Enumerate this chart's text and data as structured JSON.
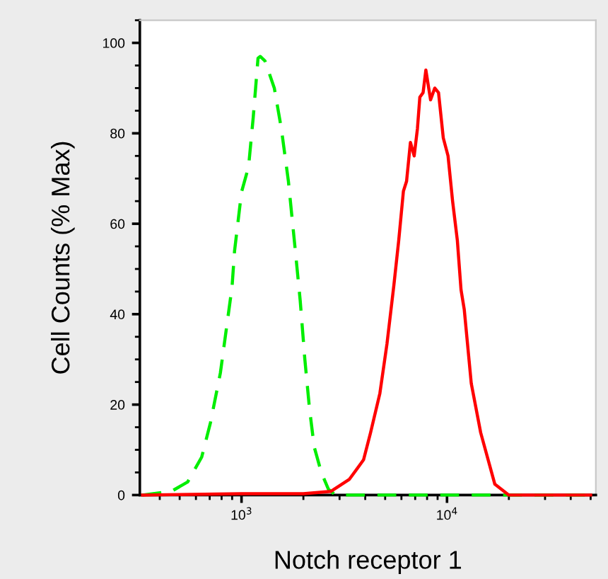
{
  "chart_data": {
    "type": "line",
    "xlabel": "Notch receptor 1",
    "ylabel": "Cell Counts (% Max)",
    "log": "x",
    "xlim": [
      320,
      53000
    ],
    "xticks": [
      {
        "value": 1000,
        "label": "10$^{3}$"
      },
      {
        "value": 10000,
        "label": "10$^{4}$"
      }
    ],
    "ylim": [
      0,
      105
    ],
    "yticks": [
      0,
      20,
      40,
      60,
      80,
      100
    ],
    "grid": false,
    "legend": false,
    "marker": "none",
    "series": [
      {
        "color": "#00ee00",
        "line_style": "dashed",
        "x": [
          330,
          455,
          547,
          640,
          706,
          789,
          899,
          925,
          1000,
          1082,
          1140,
          1203,
          1233,
          1301,
          1444,
          1563,
          1691,
          1828,
          1930,
          2033,
          2143,
          2259,
          2445,
          2647,
          2864,
          10000,
          50000
        ],
        "values": [
          0,
          0.8,
          2.9,
          8.4,
          16,
          27,
          46,
          54,
          67,
          72.6,
          83.5,
          96.6,
          97,
          96,
          90,
          81,
          69.4,
          54,
          43,
          30,
          19,
          10.6,
          5,
          1.3,
          0,
          0,
          0
        ]
      },
      {
        "color": "#ff0000",
        "line_style": "solid",
        "x": [
          330,
          1000,
          2000,
          2716,
          3350,
          3926,
          4246,
          4713,
          5102,
          5517,
          5821,
          6135,
          6357,
          6637,
          6922,
          7178,
          7375,
          7651,
          7889,
          8318,
          8716,
          9093,
          9589,
          10116,
          10646,
          11229,
          11701,
          12134,
          13122,
          14584,
          17090,
          20000,
          50000
        ],
        "values": [
          0,
          0.3,
          0.3,
          0.8,
          3.5,
          7.8,
          13.8,
          22.5,
          33.4,
          46.5,
          56.3,
          67.2,
          69.4,
          78,
          75,
          81,
          88,
          89,
          94,
          87.4,
          90,
          89,
          79,
          75,
          65,
          56.3,
          45.4,
          41,
          24.7,
          13.8,
          2.4,
          0,
          0
        ]
      }
    ]
  }
}
